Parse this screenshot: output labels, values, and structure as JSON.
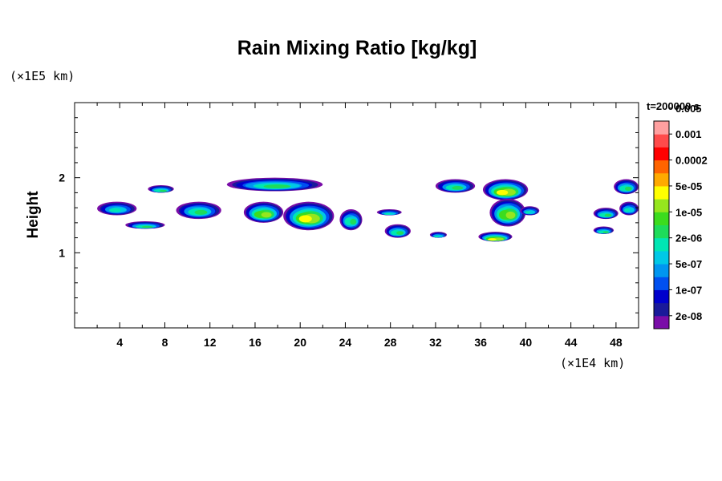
{
  "chart_data": {
    "type": "heatmap",
    "title": "Rain Mixing Ratio [kg/kg]",
    "ylabel": "Height",
    "x_unit": "(×1E4 km)",
    "y_unit": "(×1E5 km)",
    "time_label": "t=200000 s",
    "xlim": [
      0,
      50
    ],
    "ylim": [
      0,
      3
    ],
    "x_ticks": [
      4,
      8,
      12,
      16,
      20,
      24,
      28,
      32,
      36,
      40,
      44,
      48
    ],
    "y_ticks": [
      1,
      2
    ],
    "x_minor_step": 2,
    "y_minor_step": 0.2,
    "colorbar": {
      "colors": [
        "#7a0da8",
        "#1a1a9a",
        "#0000cc",
        "#0050f0",
        "#0096f0",
        "#00c8e6",
        "#00e6b4",
        "#1edc5a",
        "#3cdc1e",
        "#96e61e",
        "#ffff00",
        "#ffaa00",
        "#ff6400",
        "#ff0000",
        "#ff4b4b",
        "#ffa0a0"
      ],
      "labels": [
        "2e-08",
        "1e-07",
        "5e-07",
        "2e-06",
        "1e-05",
        "5e-05",
        "0.0002",
        "0.001",
        "0.005"
      ]
    },
    "regions": [
      {
        "x": [
          2,
          5.5
        ],
        "y": [
          1.5,
          1.68
        ],
        "peak": 6
      },
      {
        "x": [
          4.5,
          8
        ],
        "y": [
          1.32,
          1.42
        ],
        "peak": 7
      },
      {
        "x": [
          6.5,
          8.8
        ],
        "y": [
          1.8,
          1.9
        ],
        "peak": 7
      },
      {
        "x": [
          9,
          13
        ],
        "y": [
          1.45,
          1.68
        ],
        "peak": 7
      },
      {
        "x": [
          13.5,
          22
        ],
        "y": [
          1.82,
          2.0
        ],
        "peak": 7
      },
      {
        "x": [
          15,
          18.5
        ],
        "y": [
          1.4,
          1.68
        ],
        "peak": 9
      },
      {
        "x": [
          18.5,
          23
        ],
        "y": [
          1.3,
          1.68
        ],
        "peak": 10
      },
      {
        "x": [
          23.5,
          25.5
        ],
        "y": [
          1.3,
          1.58
        ],
        "peak": 7
      },
      {
        "x": [
          26.8,
          29
        ],
        "y": [
          1.5,
          1.58
        ],
        "peak": 6
      },
      {
        "x": [
          27.5,
          29.8
        ],
        "y": [
          1.2,
          1.38
        ],
        "peak": 7
      },
      {
        "x": [
          32,
          35.5
        ],
        "y": [
          1.8,
          1.98
        ],
        "peak": 7
      },
      {
        "x": [
          31.5,
          33
        ],
        "y": [
          1.2,
          1.28
        ],
        "peak": 6
      },
      {
        "x": [
          36.2,
          40.2
        ],
        "y": [
          1.7,
          1.98
        ],
        "peak": 10
      },
      {
        "x": [
          36.8,
          40
        ],
        "y": [
          1.35,
          1.72
        ],
        "peak": 9
      },
      {
        "x": [
          35.8,
          38.8
        ],
        "y": [
          1.15,
          1.28
        ],
        "peak": 10
      },
      {
        "x": [
          39.5,
          41.2
        ],
        "y": [
          1.5,
          1.62
        ],
        "peak": 6
      },
      {
        "x": [
          46,
          48.2
        ],
        "y": [
          1.45,
          1.6
        ],
        "peak": 7
      },
      {
        "x": [
          46,
          47.8
        ],
        "y": [
          1.25,
          1.35
        ],
        "peak": 7
      },
      {
        "x": [
          47.8,
          50
        ],
        "y": [
          1.78,
          1.98
        ],
        "peak": 7
      },
      {
        "x": [
          48.3,
          50
        ],
        "y": [
          1.5,
          1.68
        ],
        "peak": 6
      }
    ]
  }
}
